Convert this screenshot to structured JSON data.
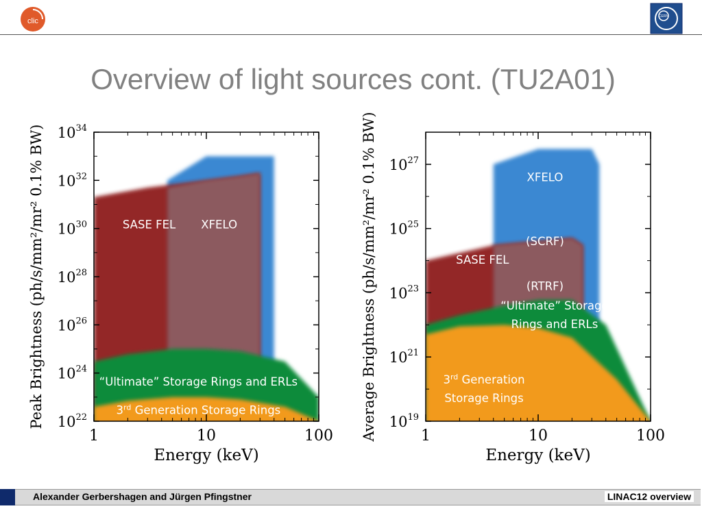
{
  "slide": {
    "title": "Overview of light sources cont. (TU2A01)",
    "footer_left": "Alexander Gerbershagen and Jürgen Pfingstner",
    "footer_right": "LINAC12 overview",
    "logo_left": "clic-logo",
    "logo_right": "cern-logo"
  },
  "colors": {
    "sase": "#8e1b1d",
    "xfelo": "#3b88d2",
    "overlap": "#8c5a5f",
    "ultimate": "#118b3b",
    "third_gen": "#f29a1f",
    "axis": "#000000"
  },
  "chart_data": [
    {
      "type": "area",
      "xscale": "log",
      "yscale": "log",
      "xlabel": "Energy (keV)",
      "ylabel": "Peak Brightness (ph/s/mm²/mr² 0.1% BW)",
      "xlim": [
        1,
        100
      ],
      "ylim": [
        1e+22,
        1e+34
      ],
      "xticks": [
        {
          "v": 1,
          "label": "1"
        },
        {
          "v": 10,
          "label": "10"
        },
        {
          "v": 100,
          "label": "100"
        }
      ],
      "yticks": [
        {
          "v": 22,
          "base": "10",
          "exp": "22"
        },
        {
          "v": 24,
          "base": "10",
          "exp": "24"
        },
        {
          "v": 26,
          "base": "10",
          "exp": "26"
        },
        {
          "v": 28,
          "base": "10",
          "exp": "28"
        },
        {
          "v": 30,
          "base": "10",
          "exp": "30"
        },
        {
          "v": 32,
          "base": "10",
          "exp": "32"
        },
        {
          "v": 34,
          "base": "10",
          "exp": "34"
        }
      ],
      "series": [
        {
          "name": "3rd Generation Storage Rings",
          "color_key": "third_gen",
          "x": [
            1,
            2,
            5,
            10,
            20,
            50,
            100
          ],
          "y_top": [
            4e+22,
            7e+22,
            1e+23,
            1e+23,
            8e+22,
            4e+22,
            1e+22
          ]
        },
        {
          "name": "“Ultimate” Storage Rings and ERLs",
          "color_key": "ultimate",
          "x": [
            1,
            2,
            5,
            10,
            20,
            50,
            100
          ],
          "y_top": [
            3e+24,
            6e+24,
            1e+25,
            1e+25,
            8e+24,
            3e+24,
            1e+23
          ]
        },
        {
          "name": "SASE FEL",
          "color_key": "sase",
          "x": [
            1,
            3,
            10,
            20,
            30
          ],
          "y_top": [
            2e+31,
            5e+31,
            1e+32,
            1.5e+32,
            2e+32
          ]
        },
        {
          "name": "XFELO",
          "color_key": "xfelo",
          "x": [
            4.5,
            10,
            30,
            40
          ],
          "y_top": [
            1e+32,
            1e+33,
            1e+33,
            1e+33
          ]
        }
      ],
      "annotations": [
        {
          "text": "SASE FEL",
          "x": 3.1,
          "y": 1e+30
        },
        {
          "text": "XFELO",
          "x": 13,
          "y": 1e+30
        },
        {
          "text": "“Ultimate” Storage Rings and ERLs",
          "x": 8.5,
          "y": 3e+23
        },
        {
          "text_pre": "3",
          "text_sup": "rd",
          "text_post": " Generation Storage Rings",
          "x": 8.5,
          "y": 2e+22
        }
      ]
    },
    {
      "type": "area",
      "xscale": "log",
      "yscale": "log",
      "xlabel": "Energy (keV)",
      "ylabel": "Average Brightness (ph/s/mm²/mr² 0.1% BW)",
      "xlim": [
        1,
        100
      ],
      "ylim": [
        1e+19,
        1e+28
      ],
      "xticks": [
        {
          "v": 1,
          "label": "1"
        },
        {
          "v": 10,
          "label": "10"
        },
        {
          "v": 100,
          "label": "100"
        }
      ],
      "yticks": [
        {
          "v": 19,
          "base": "10",
          "exp": "19"
        },
        {
          "v": 21,
          "base": "10",
          "exp": "21"
        },
        {
          "v": 23,
          "base": "10",
          "exp": "23"
        },
        {
          "v": 25,
          "base": "10",
          "exp": "25"
        },
        {
          "v": 27,
          "base": "10",
          "exp": "27"
        }
      ],
      "series": [
        {
          "name": "3rd Generation Storage Rings",
          "color_key": "third_gen",
          "x": [
            1,
            2,
            5,
            10,
            20,
            50,
            100
          ],
          "y_top": [
            5e+21,
            9e+21,
            1e+22,
            8e+21,
            4e+21,
            2e+20,
            1e+19
          ]
        },
        {
          "name": "“Ultimate” Storage Rings and ERLs",
          "color_key": "ultimate",
          "x": [
            1,
            2,
            5,
            10,
            20,
            40,
            100
          ],
          "y_top": [
            1e+22,
            2e+22,
            4e+22,
            6e+22,
            6e+22,
            1e+22,
            1e+19
          ]
        },
        {
          "name": "SASE FEL",
          "color_key": "sase",
          "x": [
            1,
            4,
            10,
            20,
            25
          ],
          "y_top": [
            1e+24,
            3e+24,
            4e+24,
            5e+24,
            3e+24
          ]
        },
        {
          "name": "XFELO",
          "color_key": "xfelo",
          "x": [
            4,
            10,
            20,
            30,
            35
          ],
          "y_top": [
            1e+27,
            3e+27,
            3e+27,
            3e+27,
            1e+27
          ]
        }
      ],
      "annotations": [
        {
          "text": "XFELO",
          "x": 11.5,
          "y": 3e+26
        },
        {
          "text": "(SCRF)",
          "x": 11.5,
          "y": 3e+24
        },
        {
          "text": "SASE FEL",
          "x": 3.2,
          "y": 8e+23
        },
        {
          "text": "(RTRF)",
          "x": 11.5,
          "y": 1.2e+23
        },
        {
          "text": "“Ultimate” Storage",
          "x": 14,
          "y": 3e+22
        },
        {
          "text": "Rings and ERLs",
          "x": 14,
          "y": 8e+21
        },
        {
          "text_pre": "3",
          "text_sup": "rd",
          "text_post": " Generation",
          "x": 3.3,
          "y": 1.5e+20
        },
        {
          "text": "Storage Rings",
          "x": 3.3,
          "y": 4e+19
        }
      ]
    }
  ]
}
